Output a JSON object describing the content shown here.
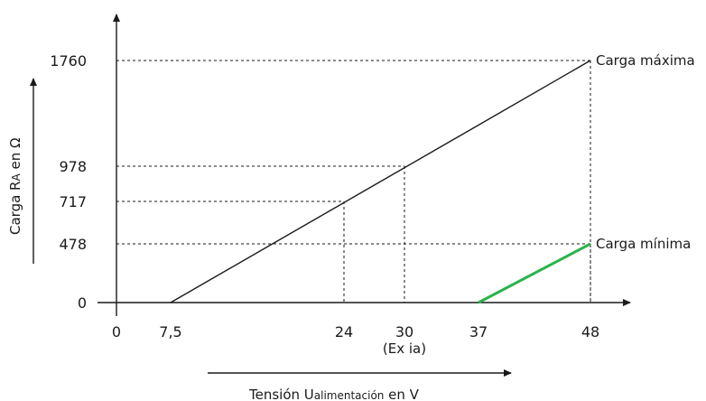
{
  "chart_data": {
    "type": "line",
    "xlabel_prefix": "Tensión U",
    "xlabel_sub": "alimentación",
    "xlabel_suffix": " en V",
    "ylabel_prefix": "Carga R",
    "ylabel_sub": "A",
    "ylabel_suffix": " en Ω",
    "x_ticks": [
      {
        "value": 0,
        "label": "0"
      },
      {
        "value": 7.5,
        "label": "7,5"
      },
      {
        "value": 24,
        "label": "24"
      },
      {
        "value": 30,
        "label": "30"
      },
      {
        "value": 37,
        "label": "37"
      },
      {
        "value": 48,
        "label": "48"
      }
    ],
    "x_tick_note": {
      "value": 30,
      "label": "(Ex ia)"
    },
    "y_ticks": [
      {
        "value": 0,
        "label": "0"
      },
      {
        "value": 478,
        "label": "478"
      },
      {
        "value": 717,
        "label": "717"
      },
      {
        "value": 978,
        "label": "978"
      },
      {
        "value": 1760,
        "label": "1760"
      }
    ],
    "series": [
      {
        "name": "Carga máxima",
        "color": "#1a1a1a",
        "points": [
          [
            7.5,
            0
          ],
          [
            48,
            1760
          ]
        ]
      },
      {
        "name": "Carga mínima",
        "color": "#2bb34b",
        "points": [
          [
            37,
            0
          ],
          [
            48,
            478
          ]
        ]
      }
    ],
    "guides": [
      {
        "x": 24,
        "y": 717
      },
      {
        "x": 30,
        "y": 978
      },
      {
        "x": 48,
        "y": 1760
      },
      {
        "x": 48,
        "y": 478
      }
    ],
    "xlim": [
      0,
      48
    ],
    "ylim": [
      0,
      1760
    ],
    "grid": false
  }
}
